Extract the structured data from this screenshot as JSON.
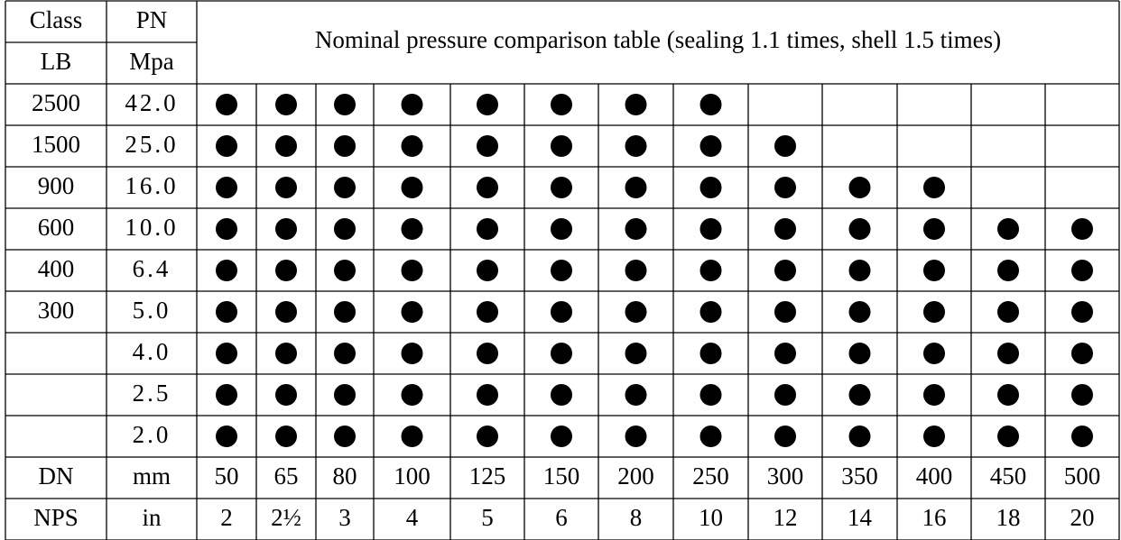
{
  "header": {
    "class": "Class",
    "pn": "PN",
    "lb": "LB",
    "mpa": "Mpa",
    "title": "Nominal pressure comparison table (sealing 1.1 times, shell 1.5 times)"
  },
  "rows": [
    {
      "class": "2500",
      "pn": "42.0",
      "marks": [
        true,
        true,
        true,
        true,
        true,
        true,
        true,
        true,
        false,
        false,
        false,
        false,
        false
      ]
    },
    {
      "class": "1500",
      "pn": "25.0",
      "marks": [
        true,
        true,
        true,
        true,
        true,
        true,
        true,
        true,
        true,
        false,
        false,
        false,
        false
      ]
    },
    {
      "class": "900",
      "pn": "16.0",
      "marks": [
        true,
        true,
        true,
        true,
        true,
        true,
        true,
        true,
        true,
        true,
        true,
        false,
        false
      ]
    },
    {
      "class": "600",
      "pn": "10.0",
      "marks": [
        true,
        true,
        true,
        true,
        true,
        true,
        true,
        true,
        true,
        true,
        true,
        true,
        true
      ]
    },
    {
      "class": "400",
      "pn": "6.4",
      "marks": [
        true,
        true,
        true,
        true,
        true,
        true,
        true,
        true,
        true,
        true,
        true,
        true,
        true
      ]
    },
    {
      "class": "300",
      "pn": "5.0",
      "marks": [
        true,
        true,
        true,
        true,
        true,
        true,
        true,
        true,
        true,
        true,
        true,
        true,
        true
      ]
    },
    {
      "pn": "4.0",
      "marks": [
        true,
        true,
        true,
        true,
        true,
        true,
        true,
        true,
        true,
        true,
        true,
        true,
        true
      ]
    },
    {
      "pn": "2.5",
      "marks": [
        true,
        true,
        true,
        true,
        true,
        true,
        true,
        true,
        true,
        true,
        true,
        true,
        true
      ]
    },
    {
      "pn": "2.0",
      "marks": [
        true,
        true,
        true,
        true,
        true,
        true,
        true,
        true,
        true,
        true,
        true,
        true,
        true
      ]
    }
  ],
  "dn": {
    "label": "DN",
    "unit": "mm",
    "values": [
      50,
      65,
      80,
      100,
      125,
      150,
      200,
      250,
      300,
      350,
      400,
      450,
      500
    ]
  },
  "nps": {
    "label": "NPS",
    "unit": "in",
    "values": [
      "2",
      "2½",
      "3",
      "4",
      "5",
      "6",
      "8",
      "10",
      "12",
      "14",
      "16",
      "18",
      "20"
    ]
  }
}
